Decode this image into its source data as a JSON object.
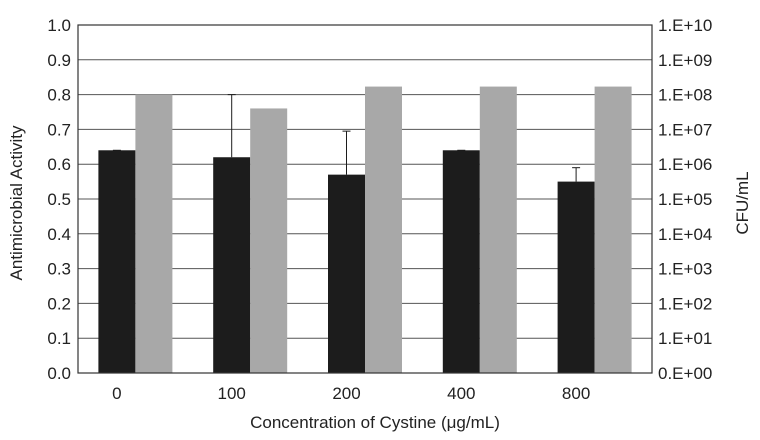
{
  "chart_data": {
    "type": "bar",
    "categories": [
      "0",
      "100",
      "200",
      "400",
      "800"
    ],
    "series": [
      {
        "axis": "left",
        "color": "#1c1c1c",
        "values": [
          0.64,
          0.62,
          0.57,
          0.64,
          0.55
        ],
        "error_upper": [
          0.0,
          0.18,
          0.125,
          0.0,
          0.04
        ]
      },
      {
        "axis": "right",
        "color": "#a8a8a8",
        "values": [
          100000000,
          40000000,
          170000000,
          170000000,
          170000000
        ]
      }
    ],
    "xlabel": "Concentration of Cystine (μg/mL)",
    "ylabel": "Antimicrobial Activity",
    "ylabel_right": "CFU/mL",
    "ylim": [
      0,
      1
    ],
    "y_ticks": [
      "0.0",
      "0.1",
      "0.2",
      "0.3",
      "0.4",
      "0.5",
      "0.6",
      "0.7",
      "0.8",
      "0.9",
      "1.0"
    ],
    "y2_scale": "log",
    "y2lim": [
      1,
      10000000000
    ],
    "y2_ticks": [
      "0.E+00",
      "1.E+01",
      "1.E+02",
      "1.E+03",
      "1.E+04",
      "1.E+05",
      "1.E+06",
      "1.E+07",
      "1.E+08",
      "1.E+09",
      "1.E+10"
    ],
    "grid": true,
    "legend": "none"
  }
}
